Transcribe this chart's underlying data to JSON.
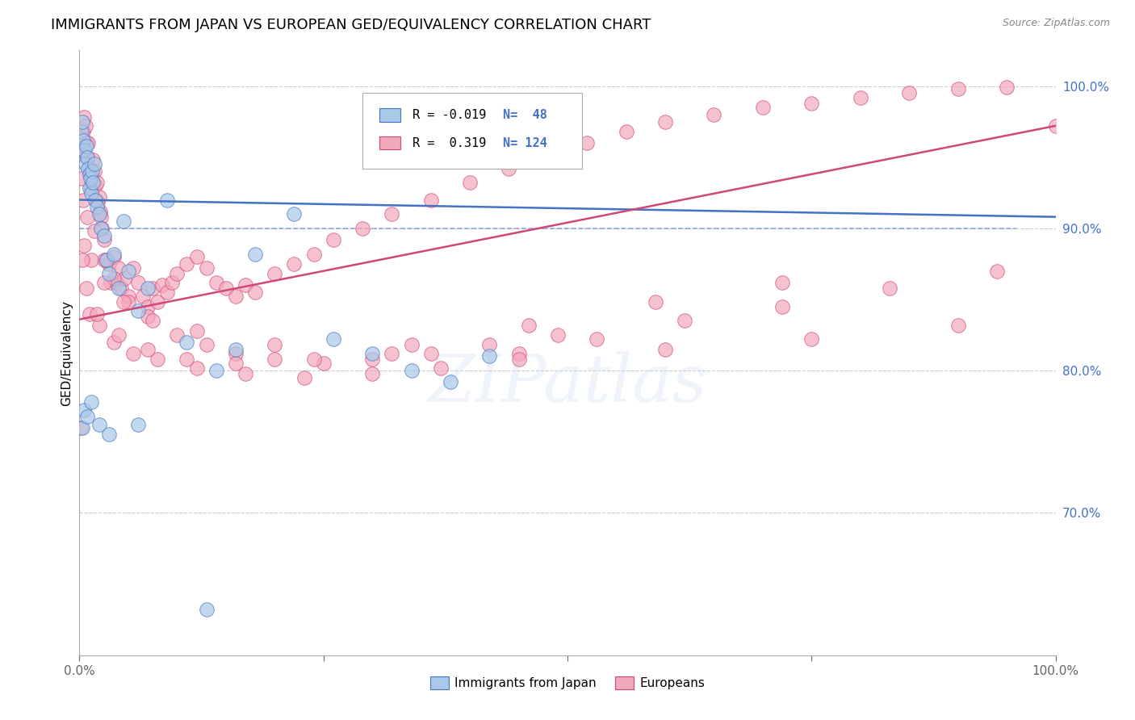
{
  "title": "IMMIGRANTS FROM JAPAN VS EUROPEAN GED/EQUIVALENCY CORRELATION CHART",
  "source": "Source: ZipAtlas.com",
  "ylabel": "GED/Equivalency",
  "watermark": "ZIPatlas",
  "legend_labels": [
    "Immigrants from Japan",
    "Europeans"
  ],
  "japan_R": -0.019,
  "japan_N": 48,
  "europe_R": 0.319,
  "europe_N": 124,
  "xlim": [
    0.0,
    1.0
  ],
  "ylim": [
    0.6,
    1.025
  ],
  "yticks": [
    0.7,
    0.8,
    0.9,
    1.0
  ],
  "ytick_labels": [
    "70.0%",
    "80.0%",
    "90.0%",
    "100.0%"
  ],
  "japan_color": "#A8C8E8",
  "europe_color": "#F4A8BC",
  "japan_line_color": "#4472C4",
  "europe_line_color": "#D04878",
  "grid_color": "#CCCCCC",
  "right_axis_color": "#4472C4",
  "title_fontsize": 13,
  "axis_label_fontsize": 11,
  "tick_fontsize": 11,
  "japan_line_y0": 0.92,
  "japan_line_y1": 0.908,
  "europe_line_y0": 0.836,
  "europe_line_y1": 0.972,
  "dashed_line_y": 0.9,
  "japan_scatter_x": [
    0.002,
    0.003,
    0.004,
    0.005,
    0.006,
    0.007,
    0.008,
    0.009,
    0.01,
    0.01,
    0.011,
    0.012,
    0.013,
    0.014,
    0.015,
    0.016,
    0.018,
    0.02,
    0.022,
    0.025,
    0.028,
    0.03,
    0.035,
    0.04,
    0.045,
    0.05,
    0.06,
    0.07,
    0.09,
    0.11,
    0.14,
    0.16,
    0.18,
    0.22,
    0.26,
    0.3,
    0.34,
    0.38,
    0.42,
    0.5,
    0.003,
    0.005,
    0.008,
    0.012,
    0.02,
    0.03,
    0.06,
    0.13
  ],
  "japan_scatter_y": [
    0.968,
    0.975,
    0.962,
    0.955,
    0.945,
    0.958,
    0.95,
    0.942,
    0.938,
    0.928,
    0.935,
    0.925,
    0.94,
    0.932,
    0.945,
    0.92,
    0.915,
    0.91,
    0.9,
    0.895,
    0.878,
    0.868,
    0.882,
    0.858,
    0.905,
    0.87,
    0.842,
    0.858,
    0.92,
    0.82,
    0.8,
    0.815,
    0.882,
    0.91,
    0.822,
    0.812,
    0.8,
    0.792,
    0.81,
    0.96,
    0.76,
    0.772,
    0.768,
    0.778,
    0.762,
    0.755,
    0.762,
    0.632
  ],
  "europe_scatter_x": [
    0.001,
    0.002,
    0.003,
    0.004,
    0.005,
    0.006,
    0.007,
    0.008,
    0.009,
    0.01,
    0.011,
    0.012,
    0.013,
    0.014,
    0.015,
    0.016,
    0.017,
    0.018,
    0.019,
    0.02,
    0.021,
    0.022,
    0.023,
    0.025,
    0.027,
    0.03,
    0.032,
    0.035,
    0.038,
    0.04,
    0.043,
    0.046,
    0.05,
    0.055,
    0.06,
    0.065,
    0.07,
    0.075,
    0.08,
    0.085,
    0.09,
    0.095,
    0.1,
    0.11,
    0.12,
    0.13,
    0.14,
    0.15,
    0.16,
    0.17,
    0.18,
    0.2,
    0.22,
    0.24,
    0.26,
    0.29,
    0.32,
    0.36,
    0.4,
    0.44,
    0.48,
    0.52,
    0.56,
    0.6,
    0.65,
    0.7,
    0.75,
    0.8,
    0.85,
    0.9,
    0.95,
    1.0,
    0.004,
    0.008,
    0.015,
    0.025,
    0.035,
    0.05,
    0.07,
    0.1,
    0.13,
    0.16,
    0.2,
    0.25,
    0.3,
    0.36,
    0.42,
    0.49,
    0.01,
    0.02,
    0.035,
    0.055,
    0.08,
    0.12,
    0.17,
    0.23,
    0.3,
    0.37,
    0.45,
    0.53,
    0.62,
    0.72,
    0.83,
    0.94,
    0.005,
    0.012,
    0.025,
    0.045,
    0.075,
    0.12,
    0.2,
    0.32,
    0.45,
    0.6,
    0.75,
    0.9,
    0.003,
    0.007,
    0.018,
    0.04,
    0.07,
    0.11,
    0.16,
    0.24,
    0.34,
    0.46,
    0.59,
    0.72
  ],
  "europe_scatter_y": [
    0.76,
    0.935,
    0.955,
    0.968,
    0.978,
    0.972,
    0.96,
    0.95,
    0.96,
    0.942,
    0.938,
    0.928,
    0.935,
    0.948,
    0.94,
    0.93,
    0.92,
    0.932,
    0.918,
    0.922,
    0.912,
    0.908,
    0.9,
    0.892,
    0.878,
    0.875,
    0.862,
    0.88,
    0.862,
    0.872,
    0.858,
    0.865,
    0.852,
    0.872,
    0.862,
    0.852,
    0.845,
    0.858,
    0.848,
    0.86,
    0.855,
    0.862,
    0.868,
    0.875,
    0.88,
    0.872,
    0.862,
    0.858,
    0.852,
    0.86,
    0.855,
    0.868,
    0.875,
    0.882,
    0.892,
    0.9,
    0.91,
    0.92,
    0.932,
    0.942,
    0.952,
    0.96,
    0.968,
    0.975,
    0.98,
    0.985,
    0.988,
    0.992,
    0.995,
    0.998,
    0.999,
    0.972,
    0.92,
    0.908,
    0.898,
    0.878,
    0.865,
    0.848,
    0.838,
    0.825,
    0.818,
    0.812,
    0.808,
    0.805,
    0.808,
    0.812,
    0.818,
    0.825,
    0.84,
    0.832,
    0.82,
    0.812,
    0.808,
    0.802,
    0.798,
    0.795,
    0.798,
    0.802,
    0.812,
    0.822,
    0.835,
    0.845,
    0.858,
    0.87,
    0.888,
    0.878,
    0.862,
    0.848,
    0.835,
    0.828,
    0.818,
    0.812,
    0.808,
    0.815,
    0.822,
    0.832,
    0.878,
    0.858,
    0.84,
    0.825,
    0.815,
    0.808,
    0.805,
    0.808,
    0.818,
    0.832,
    0.848,
    0.862
  ]
}
